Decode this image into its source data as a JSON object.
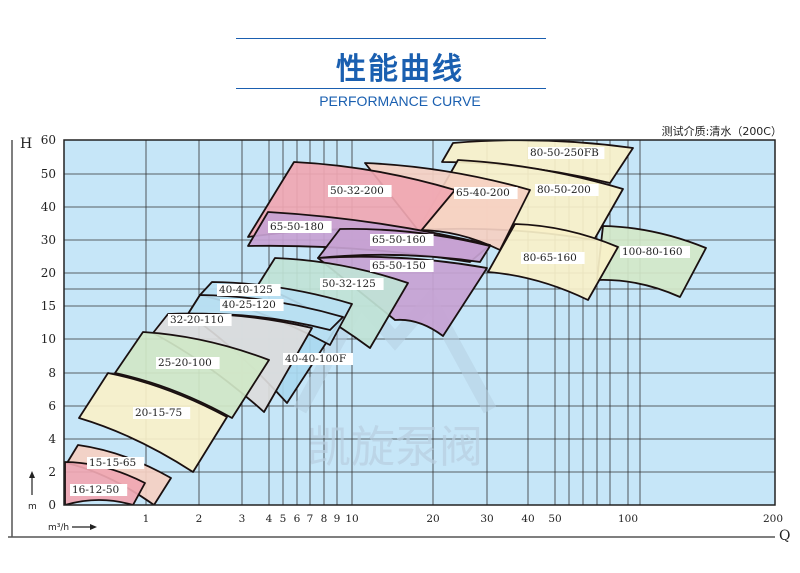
{
  "header": {
    "title": "性能曲线",
    "subtitle": "PERFORMANCE CURVE",
    "note": "测试介质:清水（200C）"
  },
  "colors": {
    "accent": "#1a5fb0",
    "plot_background": "#c6e6f8"
  },
  "chart_data": {
    "type": "area",
    "title": "",
    "ylabel": "H",
    "yunit": "m",
    "xlabel": "Q",
    "xunit": "m³/h",
    "ylim": [
      0,
      60
    ],
    "xlim": [
      0.5,
      200
    ],
    "y_ticks": [
      "60",
      "50",
      "40",
      "30",
      "20",
      "15",
      "10",
      "8",
      "6",
      "4",
      "2",
      "0"
    ],
    "x_ticks": [
      "1",
      "2",
      "3",
      "4",
      "5",
      "6",
      "7",
      "8",
      "9",
      "10",
      "20",
      "30",
      "40",
      "50",
      "100",
      "200"
    ],
    "grid": true,
    "watermark": "凯旋泵阀",
    "regions": [
      {
        "name": "80-50-250FB",
        "color": "#f8f1c9"
      },
      {
        "name": "80-50-200",
        "color": "#f8f1c9"
      },
      {
        "name": "100-80-160",
        "color": "#d2e8c8"
      },
      {
        "name": "80-65-160",
        "color": "#f8f1c9"
      },
      {
        "name": "65-40-200",
        "color": "#f5d0c2"
      },
      {
        "name": "50-32-200",
        "color": "#f0a7b2"
      },
      {
        "name": "65-50-180",
        "color": "#c7a2d3"
      },
      {
        "name": "65-50-160",
        "color": "#c7a2d3"
      },
      {
        "name": "65-50-150",
        "color": "#c7a2d3"
      },
      {
        "name": "50-32-125",
        "color": "#c0e3d6"
      },
      {
        "name": "40-40-100F",
        "color": "#a9d9f0"
      },
      {
        "name": "40-40-125",
        "color": "#b9e0f2"
      },
      {
        "name": "40-25-120",
        "color": "#b9e0f2"
      },
      {
        "name": "32-20-110",
        "color": "#dcdcdc"
      },
      {
        "name": "25-20-100",
        "color": "#d0e7c7"
      },
      {
        "name": "20-15-75",
        "color": "#f8f1c9"
      },
      {
        "name": "15-15-65",
        "color": "#f5d0c2"
      },
      {
        "name": "16-12-50",
        "color": "#f0a7b2"
      }
    ]
  }
}
